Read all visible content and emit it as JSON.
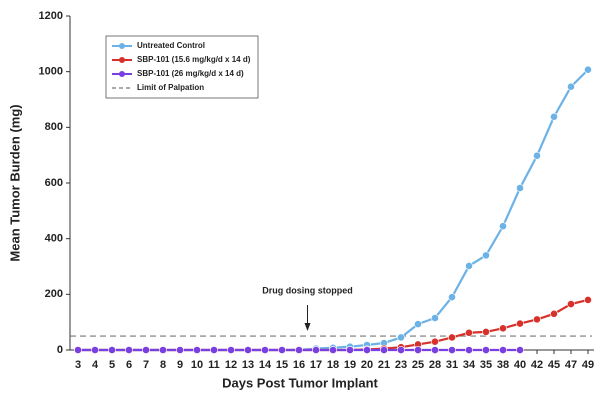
{
  "chart_data": {
    "type": "line",
    "x_label": "Days Post Tumor Implant",
    "y_label": "Mean Tumor Burden (mg)",
    "categories": [
      "3",
      "4",
      "5",
      "6",
      "7",
      "8",
      "9",
      "10",
      "11",
      "12",
      "13",
      "14",
      "15",
      "16",
      "17",
      "18",
      "19",
      "20",
      "21",
      "23",
      "25",
      "28",
      "31",
      "34",
      "35",
      "38",
      "40",
      "42",
      "45",
      "47",
      "49"
    ],
    "series": [
      {
        "name": "Untreated Control",
        "color": "#6cb2e6",
        "values": [
          0,
          0,
          0,
          0,
          0,
          0,
          0,
          0,
          0,
          0,
          0,
          0,
          0,
          0,
          5,
          8,
          12,
          18,
          25,
          45,
          93,
          115,
          190,
          302,
          340,
          445,
          582,
          698,
          838,
          946,
          1007
        ]
      },
      {
        "name": "SBP-101 (15.6 mg/kg/d x 14 d)",
        "color": "#d8302a",
        "values": [
          0,
          0,
          0,
          0,
          0,
          0,
          0,
          0,
          0,
          0,
          0,
          0,
          0,
          0,
          0,
          0,
          0,
          2,
          5,
          10,
          20,
          30,
          45,
          62,
          65,
          78,
          95,
          110,
          130,
          165,
          180
        ]
      },
      {
        "name": "SBP-101 (26 mg/kg/d x 14 d)",
        "color": "#7a3fe0",
        "values": [
          0,
          0,
          0,
          0,
          0,
          0,
          0,
          0,
          0,
          0,
          0,
          0,
          0,
          0,
          0,
          0,
          0,
          0,
          0,
          0,
          0,
          0,
          0,
          0,
          0,
          0,
          0,
          null,
          null,
          null,
          null
        ]
      }
    ],
    "reference_line": {
      "name": "Limit of Palpation",
      "value": 50,
      "color": "#777777"
    },
    "annotation": "Drug dosing stopped",
    "ylim": [
      0,
      1200
    ],
    "yticks": [
      0,
      200,
      400,
      600,
      800,
      1000,
      1200
    ],
    "legend": "upper left",
    "grid": false
  }
}
